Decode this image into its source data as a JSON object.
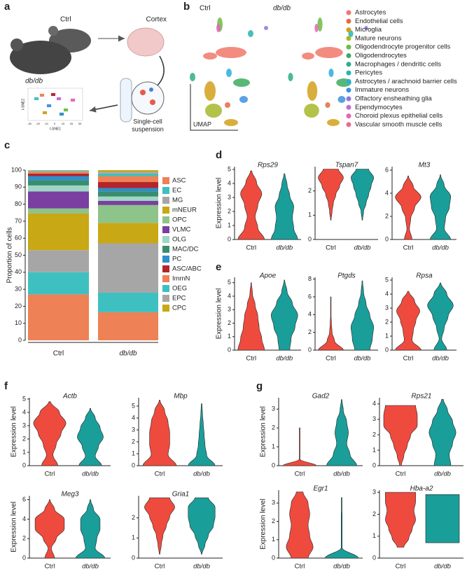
{
  "panel_labels": [
    "a",
    "b",
    "c",
    "d",
    "e",
    "f",
    "g"
  ],
  "schematic": {
    "ctrl": "Ctrl",
    "dbdb": "db/db",
    "cortex": "Cortex",
    "suspension": [
      "Single-cell",
      "suspension"
    ],
    "tsne1": "t-SNE1",
    "tsne2": "t-SNE2",
    "tsne_ticks": [
      "-30",
      "-20",
      "-10",
      "0",
      "10",
      "20",
      "30"
    ]
  },
  "chart_data": [
    {
      "type": "bar",
      "stacked": true,
      "categories": [
        "Ctrl",
        "db/db"
      ],
      "ylim": [
        0,
        100
      ],
      "yticks": [
        0,
        10,
        20,
        30,
        40,
        50,
        60,
        70,
        80,
        90,
        100
      ],
      "y_label": "Proportion of cells",
      "series": [
        {
          "name": "ASC",
          "color": "#ee8155",
          "values": [
            27,
            16.5
          ]
        },
        {
          "name": "EC",
          "color": "#3fc0c0",
          "values": [
            13,
            11.5
          ]
        },
        {
          "name": "MG",
          "color": "#a6a6a6",
          "values": [
            13,
            29
          ]
        },
        {
          "name": "mNEUR",
          "color": "#c8a814",
          "values": [
            21.5,
            12
          ]
        },
        {
          "name": "OPC",
          "color": "#8dc48a",
          "values": [
            3,
            10.5
          ]
        },
        {
          "name": "VLMC",
          "color": "#7a3fa0",
          "values": [
            10,
            2.5
          ]
        },
        {
          "name": "OLG",
          "color": "#9ed6c4",
          "values": [
            3.5,
            2.5
          ]
        },
        {
          "name": "MAC/DC",
          "color": "#3a8c6e",
          "values": [
            3,
            3
          ]
        },
        {
          "name": "PC",
          "color": "#2e8fc9",
          "values": [
            2.5,
            2
          ]
        },
        {
          "name": "ASC/ABC",
          "color": "#b3242b",
          "values": [
            1.5,
            3.5
          ]
        },
        {
          "name": "ImmN",
          "color": "#ee8155",
          "values": [
            1,
            3.5
          ]
        },
        {
          "name": "OEG",
          "color": "#3fc0c0",
          "values": [
            0.5,
            1.5
          ]
        },
        {
          "name": "EPC",
          "color": "#a6a6a6",
          "values": [
            0.3,
            1
          ]
        },
        {
          "name": "CPC",
          "color": "#c8a814",
          "values": [
            0.2,
            1
          ]
        }
      ]
    },
    {
      "type": "umap",
      "titles": [
        "Ctrl",
        "db/db"
      ],
      "axis_label": "UMAP",
      "series": [
        {
          "name": "Astrocytes",
          "color": "#f0786a"
        },
        {
          "name": "Endothelial cells",
          "color": "#e46a3e"
        },
        {
          "name": "Microglia",
          "color": "#d3a01a"
        },
        {
          "name": "Mature neurons",
          "color": "#a6b82a"
        },
        {
          "name": "Oligodendrocyte progenitor cells",
          "color": "#6dbb45"
        },
        {
          "name": "Oligodendrocytes",
          "color": "#3daa60"
        },
        {
          "name": "Macrophages / dendritic cells",
          "color": "#2bae8a"
        },
        {
          "name": "Pericytes",
          "color": "#27b5b0"
        },
        {
          "name": "Astrocytes / arachnoid barrier cells",
          "color": "#2aaedc"
        },
        {
          "name": "Immature neurons",
          "color": "#3f8fe0"
        },
        {
          "name": "Olfactory ensheathing glia",
          "color": "#8c78e0"
        },
        {
          "name": "Ependymocytes",
          "color": "#c46ad6"
        },
        {
          "name": "Choroid plexus epithelial cells",
          "color": "#e266b7"
        },
        {
          "name": "Vascular smooth muscle cells",
          "color": "#ec6a8f"
        }
      ]
    },
    {
      "type": "violin",
      "title": "Rps29",
      "y_label": "Expression level",
      "categories": [
        "Ctrl",
        "db/db"
      ],
      "ylim": [
        0,
        5.2
      ],
      "yticks": [
        0,
        1,
        2,
        3,
        4,
        5
      ],
      "series": [
        {
          "color": "#ee4b3e",
          "range": [
            0,
            4.9
          ],
          "widths": [
            1.0,
            0.5,
            0.3,
            0.5,
            0.8,
            0.4,
            0.05
          ]
        },
        {
          "color": "#1a9e9a",
          "range": [
            0,
            4.7
          ],
          "widths": [
            1.0,
            0.7,
            0.6,
            0.7,
            0.4,
            0.2,
            0.03
          ]
        }
      ]
    },
    {
      "type": "violin",
      "title": "Tspan7",
      "categories": [
        "Ctrl",
        "db/db"
      ],
      "ylim": [
        0,
        3
      ],
      "yticks": [
        0,
        1,
        2
      ],
      "series": [
        {
          "color": "#ee4b3e",
          "range": [
            0.8,
            2.9
          ],
          "widths": [
            0.02,
            0.1,
            0.2,
            0.4,
            0.7,
            1.0,
            0.6
          ]
        },
        {
          "color": "#1a9e9a",
          "range": [
            0.8,
            2.9
          ],
          "widths": [
            0.02,
            0.1,
            0.3,
            0.5,
            0.7,
            0.9,
            0.5
          ]
        }
      ]
    },
    {
      "type": "violin",
      "title": "Mt3",
      "categories": [
        "Ctrl",
        "db/db"
      ],
      "ylim": [
        0,
        6.3
      ],
      "yticks": [
        0,
        2,
        4,
        6
      ],
      "series": [
        {
          "color": "#ee4b3e",
          "range": [
            0,
            5.5
          ],
          "widths": [
            0.3,
            0.1,
            0.2,
            0.5,
            1.0,
            0.4,
            0.02
          ]
        },
        {
          "color": "#1a9e9a",
          "range": [
            0,
            5.6
          ],
          "widths": [
            0.8,
            0.3,
            0.4,
            0.7,
            0.8,
            0.3,
            0.02
          ]
        }
      ]
    },
    {
      "type": "violin",
      "title": "Apoe",
      "y_label": "Expression level",
      "categories": [
        "Ctrl",
        "db/db"
      ],
      "ylim": [
        0,
        5.4
      ],
      "yticks": [
        0,
        1,
        2,
        3,
        4,
        5
      ],
      "series": [
        {
          "color": "#ee4b3e",
          "range": [
            0,
            5
          ],
          "widths": [
            1.0,
            0.8,
            0.6,
            0.5,
            0.3,
            0.1,
            0.02
          ]
        },
        {
          "color": "#1a9e9a",
          "range": [
            0,
            5.2
          ],
          "widths": [
            0.4,
            0.5,
            0.8,
            1.0,
            0.6,
            0.2,
            0.02
          ]
        }
      ]
    },
    {
      "type": "violin",
      "title": "Ptgds",
      "categories": [
        "Ctrl",
        "db/db"
      ],
      "ylim": [
        0,
        8.2
      ],
      "yticks": [
        0,
        2,
        4,
        6,
        8
      ],
      "series": [
        {
          "color": "#ee4b3e",
          "range": [
            0,
            6
          ],
          "widths": [
            1.0,
            0.3,
            0.1,
            0.05,
            0.02,
            0.02,
            0.01
          ]
        },
        {
          "color": "#1a9e9a",
          "range": [
            0,
            7.8
          ],
          "widths": [
            0.6,
            0.8,
            0.9,
            0.6,
            0.3,
            0.1,
            0.02
          ]
        }
      ]
    },
    {
      "type": "violin",
      "title": "Rpsa",
      "categories": [
        "Ctrl",
        "db/db"
      ],
      "ylim": [
        0,
        5.2
      ],
      "yticks": [
        0,
        1,
        2,
        3,
        4,
        5
      ],
      "series": [
        {
          "color": "#ee4b3e",
          "range": [
            0,
            4.2
          ],
          "widths": [
            1.0,
            0.3,
            0.4,
            0.6,
            0.9,
            0.5,
            0.05
          ]
        },
        {
          "color": "#1a9e9a",
          "range": [
            0,
            4.8
          ],
          "widths": [
            0.5,
            0.1,
            0.3,
            0.6,
            1.0,
            0.5,
            0.03
          ]
        }
      ]
    },
    {
      "type": "violin",
      "title": "Actb",
      "y_label": "Expression level",
      "categories": [
        "Ctrl",
        "db/db"
      ],
      "ylim": [
        0,
        5.1
      ],
      "yticks": [
        0,
        1,
        2,
        3,
        4,
        5
      ],
      "series": [
        {
          "color": "#ee4b3e",
          "range": [
            0,
            4.8
          ],
          "widths": [
            0.5,
            0.2,
            0.4,
            0.7,
            1.0,
            0.6,
            0.05
          ]
        },
        {
          "color": "#1a9e9a",
          "range": [
            0,
            4.3
          ],
          "widths": [
            0.7,
            0.3,
            0.5,
            0.8,
            0.6,
            0.3,
            0.02
          ]
        }
      ]
    },
    {
      "type": "violin",
      "title": "Mbp",
      "categories": [
        "Ctrl",
        "db/db"
      ],
      "ylim": [
        0,
        5.7
      ],
      "yticks": [
        0,
        1,
        2,
        3,
        4,
        5
      ],
      "series": [
        {
          "color": "#ee4b3e",
          "range": [
            0,
            5.5
          ],
          "widths": [
            1.0,
            0.5,
            0.6,
            0.6,
            0.5,
            0.3,
            0.02
          ]
        },
        {
          "color": "#1a9e9a",
          "range": [
            0,
            5.2
          ],
          "widths": [
            0.8,
            0.3,
            0.2,
            0.15,
            0.1,
            0.05,
            0.02
          ]
        }
      ]
    },
    {
      "type": "violin",
      "title": "Meg3",
      "y_label": "Expression level",
      "categories": [
        "Ctrl",
        "db/db"
      ],
      "ylim": [
        0,
        6.4
      ],
      "yticks": [
        0,
        2,
        4,
        6
      ],
      "series": [
        {
          "color": "#ee4b3e",
          "range": [
            0,
            6
          ],
          "widths": [
            0.3,
            0.1,
            0.4,
            0.9,
            0.9,
            0.3,
            0.02
          ]
        },
        {
          "color": "#1a9e9a",
          "range": [
            0,
            6
          ],
          "widths": [
            0.9,
            0.3,
            0.4,
            0.6,
            0.6,
            0.2,
            0.02
          ]
        }
      ]
    },
    {
      "type": "violin",
      "title": "Gria1",
      "categories": [
        "Ctrl",
        "db/db"
      ],
      "ylim": [
        0,
        3.1
      ],
      "yticks": [
        0,
        1,
        2
      ],
      "series": [
        {
          "color": "#ee4b3e",
          "range": [
            0.2,
            3.0
          ],
          "widths": [
            0.02,
            0.1,
            0.2,
            0.4,
            0.6,
            0.9,
            0.6
          ]
        },
        {
          "color": "#1a9e9a",
          "range": [
            0.2,
            3.0
          ],
          "widths": [
            0.02,
            0.2,
            0.4,
            0.7,
            0.8,
            0.8,
            0.4
          ]
        }
      ]
    },
    {
      "type": "violin",
      "title": "Gad2",
      "y_label": "Expression level",
      "categories": [
        "Ctrl",
        "db/db"
      ],
      "ylim": [
        0,
        3.6
      ],
      "yticks": [
        0,
        1,
        2,
        3
      ],
      "series": [
        {
          "color": "#ee4b3e",
          "range": [
            0,
            2
          ],
          "widths": [
            1.0,
            0.02,
            0.02,
            0.02,
            0.02,
            0.02,
            0.02
          ]
        },
        {
          "color": "#1a9e9a",
          "range": [
            0,
            3.5
          ],
          "widths": [
            0.9,
            0.5,
            0.3,
            0.4,
            0.3,
            0.1,
            0.02
          ]
        }
      ]
    },
    {
      "type": "violin",
      "title": "Rps21",
      "categories": [
        "Ctrl",
        "db/db"
      ],
      "ylim": [
        0,
        4.4
      ],
      "yticks": [
        0,
        1,
        2,
        3,
        4
      ],
      "series": [
        {
          "color": "#ee4b3e",
          "range": [
            0,
            3.9
          ],
          "widths": [
            0.05,
            0.2,
            0.4,
            0.6,
            1.0,
            1.0,
            0.9
          ]
        },
        {
          "color": "#1a9e9a",
          "range": [
            0,
            4.3
          ],
          "widths": [
            0.5,
            0.4,
            0.6,
            0.8,
            0.6,
            0.3,
            0.05
          ]
        }
      ]
    },
    {
      "type": "violin",
      "title": "Egr1",
      "y_label": "Expression level",
      "categories": [
        "Ctrl",
        "db/db"
      ],
      "ylim": [
        0,
        3.7
      ],
      "yticks": [
        0,
        1,
        2,
        3
      ],
      "series": [
        {
          "color": "#ee4b3e",
          "range": [
            0,
            3.6
          ],
          "widths": [
            0.5,
            0.8,
            0.6,
            0.5,
            0.6,
            0.5,
            0.2
          ]
        },
        {
          "color": "#1a9e9a",
          "range": [
            0,
            3.3
          ],
          "widths": [
            1.0,
            0.03,
            0.03,
            0.03,
            0.03,
            0.02,
            0.02
          ]
        }
      ]
    },
    {
      "type": "violin",
      "title": "Hba-a2",
      "categories": [
        "Ctrl",
        "db/db"
      ],
      "ylim": [
        0,
        3.1
      ],
      "yticks": [
        0,
        1,
        2,
        3
      ],
      "series": [
        {
          "color": "#ee4b3e",
          "range": [
            0.5,
            3.0
          ],
          "widths": [
            0.2,
            0.5,
            0.7,
            0.9,
            0.8,
            0.9,
            0.9
          ]
        },
        {
          "color": "#1a9e9a",
          "range": [
            0.7,
            2.9
          ],
          "widths": [
            1,
            1,
            1,
            1,
            1,
            1,
            1
          ]
        }
      ]
    }
  ]
}
